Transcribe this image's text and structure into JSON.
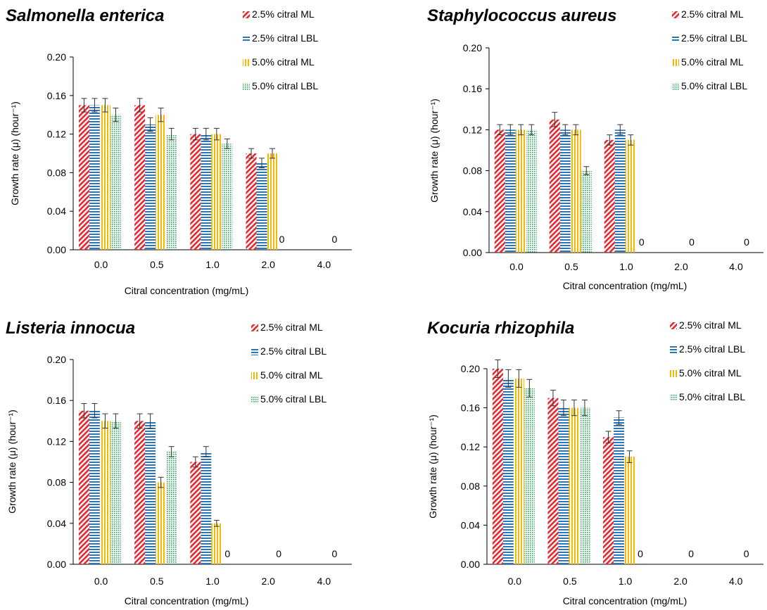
{
  "colors": {
    "ml25": "#e8262d",
    "lbl25": "#2e75b6",
    "ml50": "#f5b800",
    "lbl50": "#2eaa5a",
    "error_bar": "#333333",
    "axis": "#000000"
  },
  "legend": [
    {
      "label": "2.5% citral ML",
      "pattern": "diag"
    },
    {
      "label": "2.5% citral LBL",
      "pattern": "hlines"
    },
    {
      "label": "5.0% citral ML",
      "pattern": "vlines"
    },
    {
      "label": "5.0% citral LBL",
      "pattern": "dots"
    }
  ],
  "chart_data": [
    {
      "type": "bar",
      "title": "Salmonella enterica",
      "xlabel": "Citral concentration (mg/mL)",
      "ylabel": "Growth rate (μ) (hour⁻¹)",
      "ylim": [
        0,
        0.2
      ],
      "yticks": [
        "0.00",
        "0.04",
        "0.08",
        "0.12",
        "0.16",
        "0.20"
      ],
      "categories": [
        "0.0",
        "0.5",
        "1.0",
        "2.0",
        "4.0"
      ],
      "series": [
        {
          "name": "2.5% citral ML",
          "values": [
            0.15,
            0.15,
            0.12,
            0.1,
            0
          ],
          "errors": [
            0.007,
            0.007,
            0.006,
            0.005,
            0
          ]
        },
        {
          "name": "2.5% citral LBL",
          "values": [
            0.15,
            0.13,
            0.12,
            0.09,
            0
          ],
          "errors": [
            0.007,
            0.007,
            0.006,
            0.005,
            0
          ]
        },
        {
          "name": "5.0% citral ML",
          "values": [
            0.15,
            0.14,
            0.12,
            0.1,
            0
          ],
          "errors": [
            0.007,
            0.007,
            0.006,
            0.005,
            0
          ]
        },
        {
          "name": "5.0% citral LBL",
          "values": [
            0.14,
            0.12,
            0.11,
            0,
            0
          ],
          "errors": [
            0.007,
            0.006,
            0.005,
            0,
            0
          ]
        }
      ],
      "zero_labels": [
        {
          "category": "2.0",
          "text": "0"
        },
        {
          "category": "4.0",
          "text": "0"
        }
      ]
    },
    {
      "type": "bar",
      "title": "Staphylococcus aureus",
      "xlabel": "Citral concentration (mg/mL)",
      "ylabel": "Growth rate (μ) (hour⁻¹)",
      "ylim": [
        0,
        0.2
      ],
      "yticks": [
        "0.00",
        "0.04",
        "0.08",
        "0.12",
        "0.16",
        "0.20"
      ],
      "categories": [
        "0.0",
        "0.5",
        "1.0",
        "2.0",
        "4.0"
      ],
      "series": [
        {
          "name": "2.5% citral ML",
          "values": [
            0.12,
            0.13,
            0.11,
            0,
            0
          ],
          "errors": [
            0.005,
            0.007,
            0.005,
            0,
            0
          ]
        },
        {
          "name": "2.5% citral LBL",
          "values": [
            0.12,
            0.12,
            0.12,
            0,
            0
          ],
          "errors": [
            0.005,
            0.005,
            0.005,
            0,
            0
          ]
        },
        {
          "name": "5.0% citral ML",
          "values": [
            0.12,
            0.12,
            0.11,
            0,
            0
          ],
          "errors": [
            0.005,
            0.005,
            0.005,
            0,
            0
          ]
        },
        {
          "name": "5.0% citral LBL",
          "values": [
            0.12,
            0.08,
            0,
            0,
            0
          ],
          "errors": [
            0.005,
            0.004,
            0,
            0,
            0
          ]
        }
      ],
      "zero_labels": [
        {
          "category": "1.0",
          "text": "0"
        },
        {
          "category": "2.0",
          "text": "0"
        },
        {
          "category": "4.0",
          "text": "0"
        }
      ]
    },
    {
      "type": "bar",
      "title": "Listeria innocua",
      "xlabel": "Citral concentration (mg/mL)",
      "ylabel": "Growth rate (μ) (hour⁻¹)",
      "ylim": [
        0,
        0.2
      ],
      "yticks": [
        "0.00",
        "0.04",
        "0.08",
        "0.12",
        "0.16",
        "0.20"
      ],
      "categories": [
        "0.0",
        "0.5",
        "1.0",
        "2.0",
        "4.0"
      ],
      "series": [
        {
          "name": "2.5% citral ML",
          "values": [
            0.15,
            0.14,
            0.1,
            0,
            0
          ],
          "errors": [
            0.007,
            0.007,
            0.005,
            0,
            0
          ]
        },
        {
          "name": "2.5% citral LBL",
          "values": [
            0.15,
            0.14,
            0.11,
            0,
            0
          ],
          "errors": [
            0.007,
            0.007,
            0.005,
            0,
            0
          ]
        },
        {
          "name": "5.0% citral ML",
          "values": [
            0.14,
            0.08,
            0.04,
            0,
            0
          ],
          "errors": [
            0.007,
            0.005,
            0.003,
            0,
            0
          ]
        },
        {
          "name": "5.0% citral LBL",
          "values": [
            0.14,
            0.11,
            0,
            0,
            0
          ],
          "errors": [
            0.007,
            0.005,
            0,
            0,
            0
          ]
        }
      ],
      "zero_labels": [
        {
          "category": "1.0",
          "text": "0"
        },
        {
          "category": "2.0",
          "text": "0"
        },
        {
          "category": "4.0",
          "text": "0"
        }
      ]
    },
    {
      "type": "bar",
      "title": "Kocuria rhizophila",
      "xlabel": "Citral concentration (mg/mL)",
      "ylabel": "Growth rate (μ) (hour⁻¹)",
      "ylim": [
        0,
        0.2
      ],
      "yticks": [
        "0.00",
        "0.04",
        "0.08",
        "0.12",
        "0.16",
        "0.20"
      ],
      "categories": [
        "0.0",
        "0.5",
        "1.0",
        "2.0",
        "4.0"
      ],
      "series": [
        {
          "name": "2.5% citral ML",
          "values": [
            0.2,
            0.17,
            0.13,
            0,
            0
          ],
          "errors": [
            0.009,
            0.008,
            0.006,
            0,
            0
          ]
        },
        {
          "name": "2.5% citral LBL",
          "values": [
            0.19,
            0.16,
            0.15,
            0,
            0
          ],
          "errors": [
            0.009,
            0.008,
            0.007,
            0,
            0
          ]
        },
        {
          "name": "5.0% citral ML",
          "values": [
            0.19,
            0.16,
            0.11,
            0,
            0
          ],
          "errors": [
            0.009,
            0.008,
            0.006,
            0,
            0
          ]
        },
        {
          "name": "5.0% citral LBL",
          "values": [
            0.18,
            0.16,
            0,
            0,
            0
          ],
          "errors": [
            0.009,
            0.008,
            0,
            0,
            0
          ]
        }
      ],
      "zero_labels": [
        {
          "category": "1.0",
          "text": "0"
        },
        {
          "category": "2.0",
          "text": "0"
        },
        {
          "category": "4.0",
          "text": "0"
        }
      ]
    }
  ]
}
